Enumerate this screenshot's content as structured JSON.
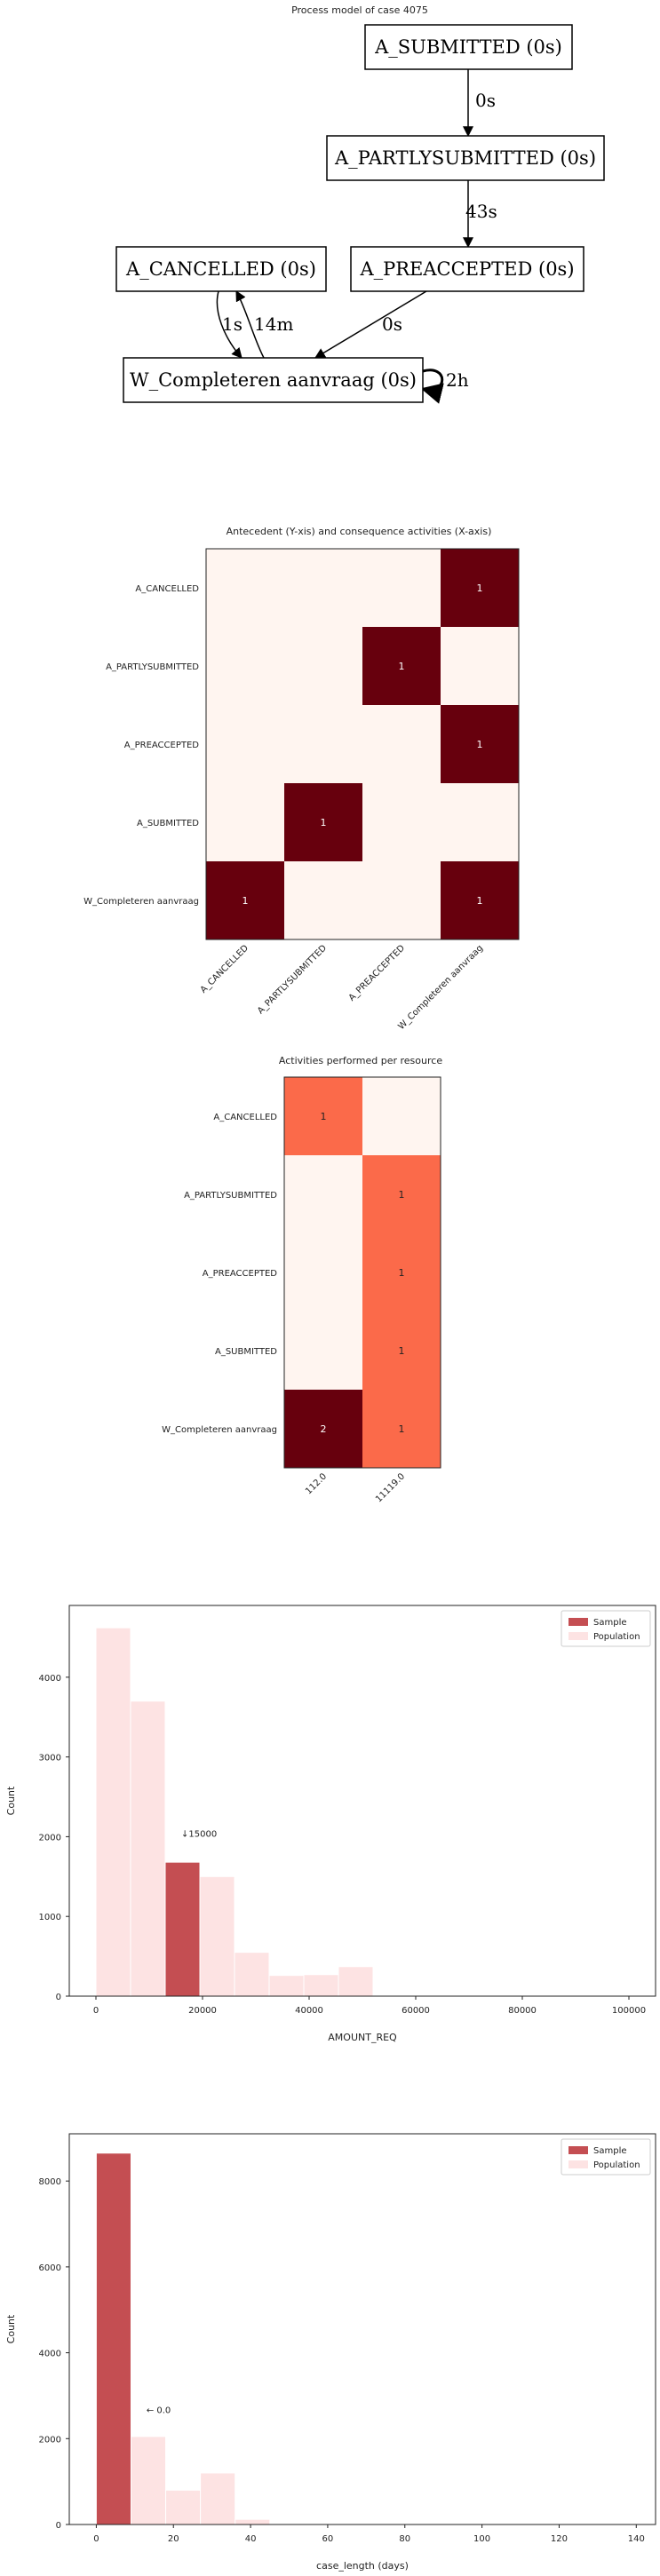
{
  "chart_data": [
    {
      "type": "diagram",
      "title": "Process model of case 4075",
      "nodes": [
        {
          "id": "sub",
          "label": "A_SUBMITTED (0s)"
        },
        {
          "id": "part",
          "label": "A_PARTLYSUBMITTED (0s)"
        },
        {
          "id": "canc",
          "label": "A_CANCELLED (0s)"
        },
        {
          "id": "pre",
          "label": "A_PREACCEPTED (0s)"
        },
        {
          "id": "wc",
          "label": "W_Completeren aanvraag (0s)"
        }
      ],
      "edges": [
        {
          "from": "sub",
          "to": "part",
          "label": "0s"
        },
        {
          "from": "part",
          "to": "pre",
          "label": "43s"
        },
        {
          "from": "canc",
          "to": "wc",
          "label": "1s"
        },
        {
          "from": "wc",
          "to": "canc",
          "label": "14m"
        },
        {
          "from": "pre",
          "to": "wc",
          "label": "0s"
        },
        {
          "from": "wc",
          "to": "wc",
          "label": "2h"
        }
      ]
    },
    {
      "type": "heatmap",
      "title": "Antecedent (Y-xis) and consequence activities (X-axis)",
      "rows": [
        "A_CANCELLED",
        "A_PARTLYSUBMITTED",
        "A_PREACCEPTED",
        "A_SUBMITTED",
        "W_Completeren aanvraag"
      ],
      "cols": [
        "A_CANCELLED",
        "A_PARTLYSUBMITTED",
        "A_PREACCEPTED",
        "W_Completeren aanvraag"
      ],
      "values": [
        [
          0,
          0,
          0,
          1
        ],
        [
          0,
          0,
          1,
          0
        ],
        [
          0,
          0,
          0,
          1
        ],
        [
          0,
          1,
          0,
          0
        ],
        [
          1,
          0,
          0,
          1
        ]
      ],
      "vmax": 1
    },
    {
      "type": "heatmap",
      "title": "Activities performed per resource",
      "rows": [
        "A_CANCELLED",
        "A_PARTLYSUBMITTED",
        "A_PREACCEPTED",
        "A_SUBMITTED",
        "W_Completeren aanvraag"
      ],
      "cols": [
        "112.0",
        "11119.0"
      ],
      "values": [
        [
          1,
          0
        ],
        [
          0,
          1
        ],
        [
          0,
          1
        ],
        [
          0,
          1
        ],
        [
          2,
          1
        ]
      ],
      "vmax": 2
    },
    {
      "type": "bar",
      "xlabel": "AMOUNT_REQ",
      "ylabel": "Count",
      "xlim": [
        -5000,
        105000
      ],
      "ylim": [
        0,
        4900
      ],
      "xticks": [
        0,
        20000,
        40000,
        60000,
        80000,
        100000
      ],
      "yticks": [
        0,
        1000,
        2000,
        3000,
        4000
      ],
      "legend": [
        "Sample",
        "Population"
      ],
      "legend_position": "top-right",
      "annotation": "↓15000",
      "annotation_x": 16000,
      "annotation_y": 2000,
      "population": {
        "bin_width": 6500,
        "bin_starts": [
          0,
          6500,
          13000,
          19500,
          26000,
          32500,
          39000,
          45500
        ],
        "counts": [
          4620,
          3700,
          1680,
          1500,
          550,
          260,
          270,
          370
        ]
      },
      "sample": {
        "bin_start": 13000,
        "bin_width": 6500,
        "count": 1680
      }
    },
    {
      "type": "bar",
      "xlabel": "case_length (days)",
      "ylabel": "Count",
      "xlim": [
        -7,
        145
      ],
      "ylim": [
        0,
        9100
      ],
      "xticks": [
        0,
        20,
        40,
        60,
        80,
        100,
        120,
        140
      ],
      "yticks": [
        0,
        2000,
        4000,
        6000,
        8000
      ],
      "legend": [
        "Sample",
        "Population"
      ],
      "legend_position": "top-right",
      "annotation": "← 0.0",
      "annotation_x": 13,
      "annotation_y": 2600,
      "population": {
        "bin_width": 9,
        "bin_starts": [
          0,
          9,
          18,
          27,
          36
        ],
        "counts": [
          8650,
          2050,
          800,
          1200,
          120
        ]
      },
      "sample": {
        "bin_start": 0,
        "bin_width": 9,
        "count": 8650
      }
    }
  ],
  "colors": {
    "heat_low": "#fff5f0",
    "heat_mid": "#fb6a4a",
    "heat_high": "#67000d",
    "sample": "#c44e52",
    "population": "#fde3e3"
  }
}
